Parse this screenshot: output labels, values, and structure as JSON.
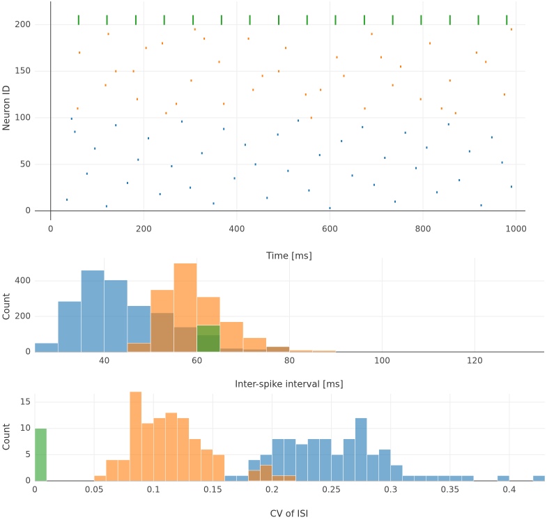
{
  "chart_data": [
    {
      "type": "scatter",
      "xlabel": "Time [ms]",
      "ylabel": "Neuron ID",
      "xlim": [
        -34,
        1020
      ],
      "ylim": [
        -10,
        225
      ],
      "xticks": [
        0,
        200,
        400,
        600,
        800,
        1000
      ],
      "yticks": [
        0,
        50,
        100,
        150,
        200
      ],
      "grid": true,
      "series": [
        {
          "color": "#1f77b4",
          "symbol": "dot",
          "x": [
            35,
            52,
            78,
            95,
            120,
            140,
            165,
            188,
            210,
            235,
            260,
            282,
            300,
            325,
            350,
            372,
            395,
            418,
            440,
            465,
            488,
            510,
            532,
            555,
            578,
            600,
            625,
            648,
            670,
            695,
            718,
            740,
            762,
            785,
            808,
            830,
            855,
            878,
            900,
            925,
            948,
            970,
            990,
            45
          ],
          "values": [
            12,
            85,
            40,
            67,
            5,
            92,
            30,
            55,
            78,
            18,
            48,
            96,
            25,
            62,
            8,
            88,
            35,
            71,
            50,
            14,
            82,
            43,
            97,
            22,
            60,
            3,
            75,
            38,
            90,
            28,
            57,
            10,
            84,
            46,
            68,
            20,
            93,
            33,
            64,
            6,
            79,
            52,
            26,
            99
          ]
        },
        {
          "color": "#ff7f0e",
          "symbol": "dot",
          "x": [
            58,
            62,
            118,
            124,
            178,
            186,
            240,
            248,
            302,
            310,
            362,
            372,
            425,
            435,
            490,
            505,
            548,
            560,
            615,
            630,
            675,
            690,
            735,
            752,
            795,
            815,
            858,
            870,
            915,
            935,
            975,
            990,
            140,
            205,
            270,
            330,
            455,
            580,
            710,
            840
          ],
          "values": [
            110,
            170,
            135,
            190,
            150,
            120,
            180,
            105,
            140,
            195,
            160,
            115,
            185,
            130,
            150,
            175,
            125,
            100,
            165,
            145,
            110,
            190,
            135,
            155,
            120,
            180,
            140,
            105,
            170,
            160,
            125,
            195,
            150,
            175,
            115,
            185,
            145,
            130,
            165,
            110
          ]
        },
        {
          "color": "#2ca02c",
          "symbol": "line",
          "x": [
            60,
            121,
            183,
            244,
            306,
            367,
            428,
            490,
            551,
            612,
            674,
            735,
            796,
            858,
            919,
            980
          ],
          "values": [
            205,
            205,
            205,
            205,
            205,
            205,
            205,
            205,
            205,
            205,
            205,
            205,
            205,
            205,
            205,
            205
          ]
        }
      ]
    },
    {
      "type": "histogram",
      "xlabel": "Inter-spike interval [ms]",
      "ylabel": "Count",
      "opacity": 0.6,
      "xlim": [
        25,
        135
      ],
      "ylim": [
        0,
        530
      ],
      "xticks": [
        40,
        60,
        80,
        100,
        120
      ],
      "yticks": [
        0,
        200,
        400
      ],
      "grid": true,
      "series": [
        {
          "color": "#1f77b4",
          "bins": [
            25,
            30,
            35,
            40,
            45,
            50,
            55,
            60,
            65,
            70,
            75,
            80
          ],
          "values": [
            50,
            285,
            460,
            405,
            260,
            220,
            140,
            95,
            20,
            15,
            30
          ]
        },
        {
          "color": "#ff7f0e",
          "bins": [
            45,
            50,
            55,
            60,
            65,
            70,
            75,
            80,
            85,
            90
          ],
          "values": [
            50,
            350,
            500,
            310,
            170,
            80,
            30,
            10,
            8
          ]
        },
        {
          "color": "#2ca02c",
          "bins": [
            60,
            65
          ],
          "values": [
            150
          ]
        }
      ]
    },
    {
      "type": "histogram",
      "xlabel": "CV of ISI",
      "ylabel": "Count",
      "opacity": 0.6,
      "xlim": [
        0,
        0.43
      ],
      "ylim": [
        0,
        16.6
      ],
      "xticks": [
        0,
        0.05,
        0.1,
        0.15,
        0.2,
        0.25,
        0.3,
        0.35,
        0.4
      ],
      "yticks": [
        0,
        5,
        10,
        15
      ],
      "grid": true,
      "series": [
        {
          "color": "#1f77b4",
          "bins": [
            0.16,
            0.17,
            0.18,
            0.19,
            0.2,
            0.21,
            0.22,
            0.23,
            0.24,
            0.25,
            0.26,
            0.27,
            0.28,
            0.29,
            0.3,
            0.31,
            0.32,
            0.33,
            0.34,
            0.35,
            0.36,
            0.37,
            0.38,
            0.39,
            0.4,
            0.41,
            0.42,
            0.43
          ],
          "values": [
            1,
            1,
            4,
            5,
            8,
            8,
            7,
            8,
            8,
            5,
            8,
            12,
            5,
            6,
            3,
            1,
            1,
            1,
            1,
            1,
            1,
            0,
            0,
            1,
            0,
            0,
            1
          ]
        },
        {
          "color": "#ff7f0e",
          "bins": [
            0.05,
            0.06,
            0.07,
            0.08,
            0.09,
            0.1,
            0.11,
            0.12,
            0.13,
            0.14,
            0.15,
            0.16,
            0.17,
            0.18,
            0.19,
            0.2,
            0.21,
            0.22
          ],
          "values": [
            1,
            4,
            4,
            17,
            11,
            12,
            13,
            12,
            8,
            6,
            5,
            0,
            0,
            2,
            3,
            1,
            1
          ]
        },
        {
          "color": "#2ca02c",
          "bins": [
            0,
            0.01
          ],
          "values": [
            10
          ]
        }
      ]
    }
  ]
}
